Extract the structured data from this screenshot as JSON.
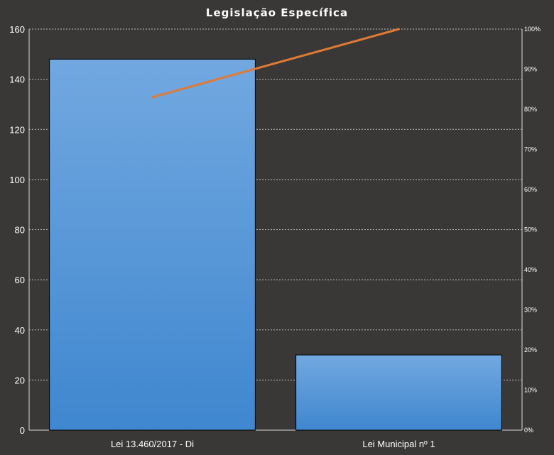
{
  "chart_data": {
    "type": "bar",
    "title": "Legislação  Específica",
    "categories": [
      "Lei 13.460/2017 - Di",
      "Lei Municipal nº 1"
    ],
    "series": [
      {
        "type": "bar",
        "values": [
          148,
          30
        ]
      },
      {
        "type": "line",
        "axis": "right",
        "values": [
          83,
          100
        ]
      }
    ],
    "ylim": [
      0,
      160
    ],
    "yticks": [
      0,
      20,
      40,
      60,
      80,
      100,
      120,
      140,
      160
    ],
    "y2lim": [
      0,
      100
    ],
    "y2ticks": [
      "0%",
      "10%",
      "20%",
      "30%",
      "40%",
      "50%",
      "60%",
      "70%",
      "80%",
      "90%",
      "100%"
    ],
    "grid": true,
    "colors": {
      "background": "#3a3836",
      "bar_top": "#72a8e0",
      "bar_bottom": "#3f87cf",
      "bar_border": "#000000",
      "line": "#e07a35"
    }
  }
}
